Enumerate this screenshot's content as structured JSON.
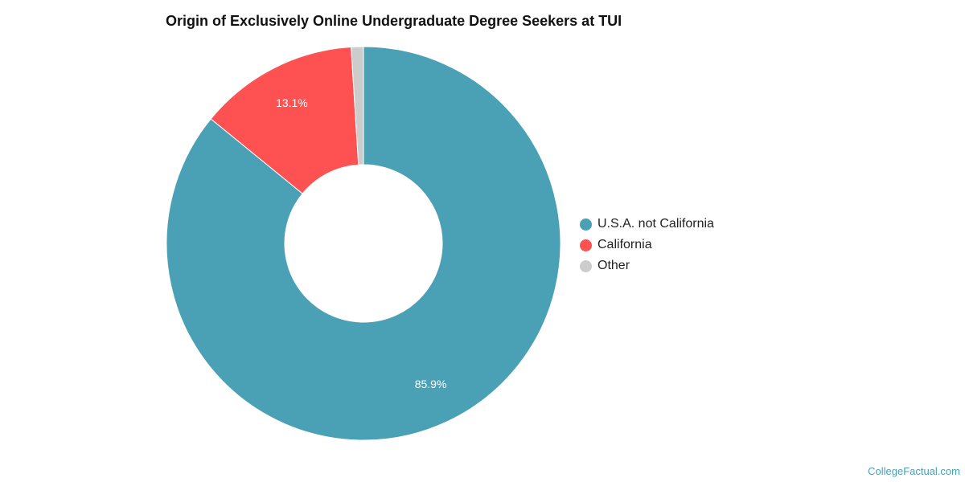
{
  "chart_data": {
    "type": "pie",
    "title": "Origin of Exclusively Online Undergraduate Degree Seekers at TUI",
    "donut": true,
    "legend_position": "right",
    "slices": [
      {
        "name": "U.S.A. not California",
        "value": 85.9,
        "label": "85.9%",
        "color": "#4aa0b4"
      },
      {
        "name": "California",
        "value": 13.1,
        "label": "13.1%",
        "color": "#fe5252"
      },
      {
        "name": "Other",
        "value": 1.0,
        "label": "",
        "color": "#cccccc"
      }
    ]
  },
  "footer": {
    "credit": "CollegeFactual.com"
  }
}
